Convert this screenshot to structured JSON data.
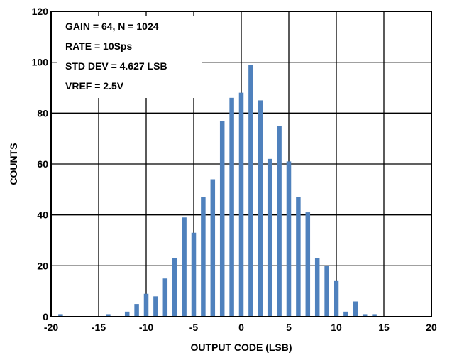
{
  "chart_data": {
    "type": "bar",
    "xlabel": "OUTPUT CODE (LSB)",
    "ylabel": "COUNTS",
    "xlim": [
      -20,
      20
    ],
    "ylim": [
      0,
      120
    ],
    "x_ticks": [
      -20,
      -15,
      -10,
      -5,
      0,
      5,
      10,
      15,
      20
    ],
    "y_ticks": [
      0,
      20,
      40,
      60,
      80,
      100,
      120
    ],
    "grid": true,
    "bar_color": "#4f81bd",
    "annotations": [
      "GAIN = 64, N = 1024",
      "RATE = 10Sps",
      "STD DEV = 4.627 LSB",
      "VREF = 2.5V"
    ],
    "x": [
      -19,
      -14,
      -12,
      -11,
      -10,
      -9,
      -8,
      -7,
      -6,
      -5,
      -4,
      -3,
      -2,
      -1,
      0,
      1,
      2,
      3,
      4,
      5,
      6,
      7,
      8,
      9,
      10,
      11,
      12,
      13,
      14
    ],
    "values": [
      1,
      1,
      2,
      5,
      9,
      8,
      15,
      23,
      39,
      33,
      47,
      54,
      77,
      86,
      88,
      99,
      85,
      62,
      75,
      61,
      47,
      41,
      23,
      20,
      14,
      2,
      6,
      1,
      1
    ]
  }
}
